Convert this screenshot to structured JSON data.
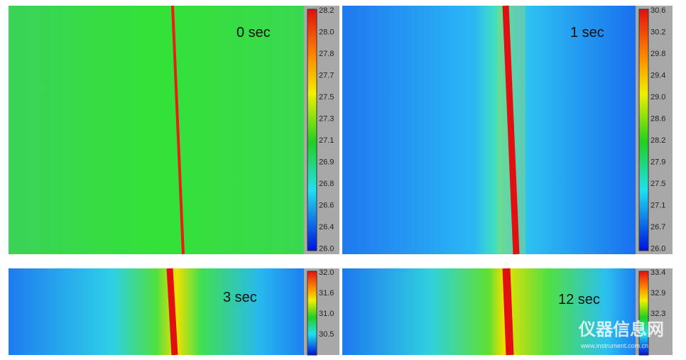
{
  "panels": [
    {
      "label": "0 sec",
      "scale": [
        "28.2",
        "28.0",
        "27.8",
        "27.7",
        "27.5",
        "27.3",
        "27.1",
        "26.9",
        "26.8",
        "26.6",
        "26.4",
        "26.0"
      ]
    },
    {
      "label": "1 sec",
      "scale": [
        "30.6",
        "30.2",
        "29.8",
        "29.4",
        "29.0",
        "28.6",
        "28.2",
        "27.9",
        "27.5",
        "27.1",
        "26.7",
        "26.0"
      ]
    },
    {
      "label": "3 sec",
      "scale": [
        "32.0",
        "31.6",
        "31.0",
        "30.5"
      ]
    },
    {
      "label": "12 sec",
      "scale": [
        "33.4",
        "32.9",
        "32.3"
      ]
    }
  ],
  "watermark": {
    "name": "仪器信息网",
    "url": "www.instrument.com.cn"
  }
}
